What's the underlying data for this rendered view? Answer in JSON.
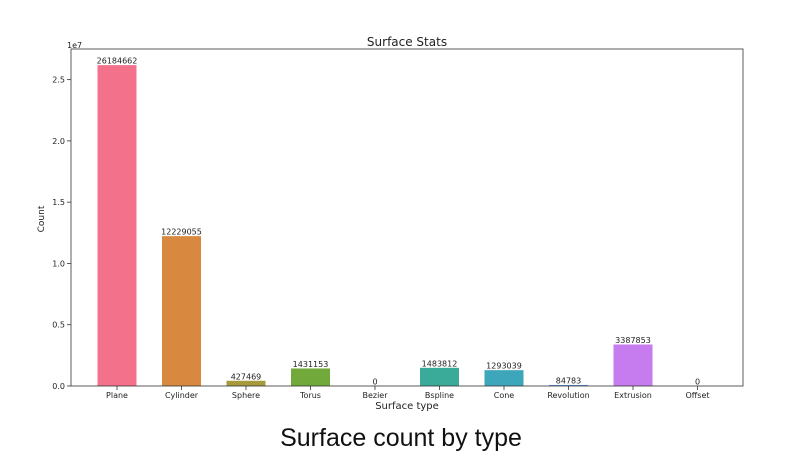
{
  "chart_data": {
    "type": "bar",
    "title": "Surface Stats",
    "xlabel": "Surface type",
    "ylabel": "Count",
    "y_offset_label": "1e7",
    "ylim": [
      0,
      27500000
    ],
    "yticks": [
      0,
      5000000,
      10000000,
      15000000,
      20000000,
      25000000
    ],
    "ytick_labels": [
      "0.0",
      "0.5",
      "1.0",
      "1.5",
      "2.0",
      "2.5"
    ],
    "categories": [
      "Plane",
      "Cylinder",
      "Sphere",
      "Torus",
      "Bezier",
      "Bspline",
      "Cone",
      "Revolution",
      "Extrusion",
      "Offset"
    ],
    "values": [
      26184662,
      12229055,
      427469,
      1431153,
      0,
      1483812,
      1293039,
      84783,
      3387853,
      0
    ],
    "data_labels": [
      "26184662",
      "12229055",
      "427469",
      "1431153",
      "0",
      "1483812",
      "1293039",
      "84783",
      "3387853",
      "0"
    ],
    "colors": [
      "#f3718a",
      "#d9883f",
      "#a79a3d",
      "#72a93b",
      "#3aac6f",
      "#3aaa99",
      "#3ea6ba",
      "#5a95e0",
      "#c67bef",
      "#f06bc8"
    ],
    "grid": false,
    "legend": "none"
  },
  "caption": "Surface count by type"
}
